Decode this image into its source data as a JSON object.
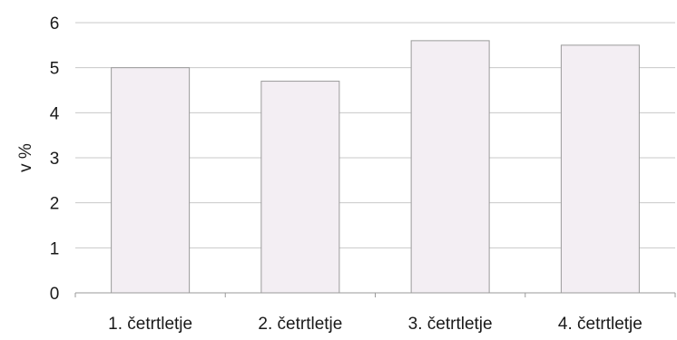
{
  "chart_data": {
    "type": "bar",
    "categories": [
      "1. četrtletje",
      "2. četrtletje",
      "3. četrtletje",
      "4. četrtletje"
    ],
    "values": [
      5.0,
      4.7,
      5.6,
      5.5
    ],
    "ylabel": "v %",
    "ylim": [
      0,
      6
    ],
    "yticks": [
      0,
      1,
      2,
      3,
      4,
      5,
      6
    ],
    "grid": true,
    "colors": {
      "bar_fill": "#f3eef3",
      "bar_stroke": "#9a9a9a",
      "grid": "#c8c8c8",
      "axis": "#9a9a9a"
    }
  }
}
